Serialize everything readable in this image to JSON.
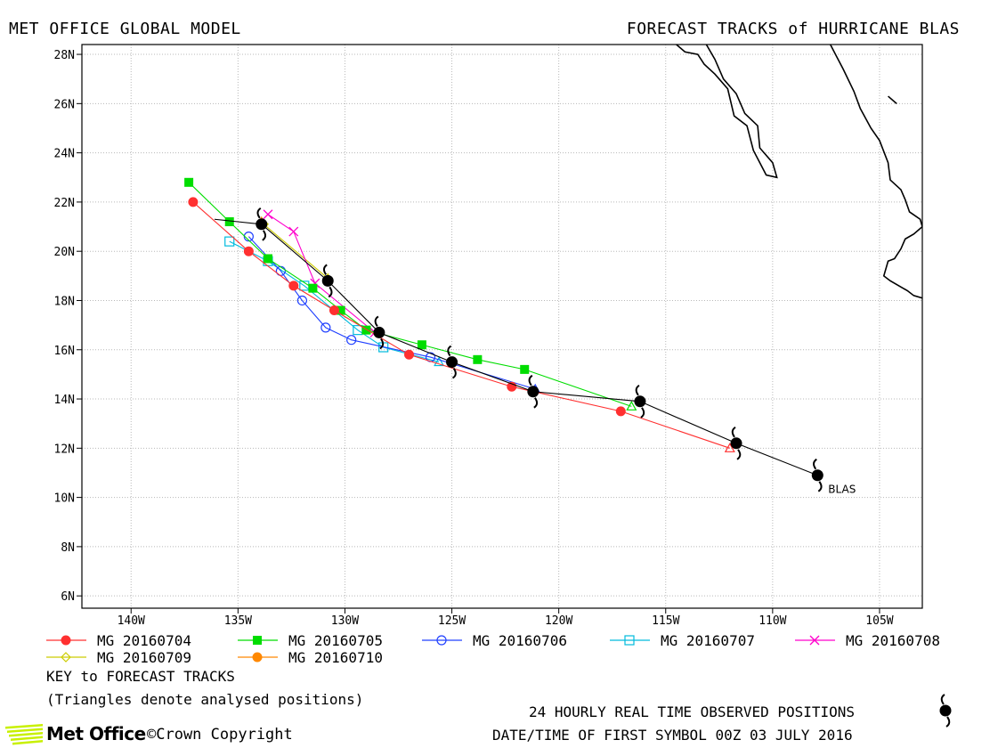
{
  "header": {
    "left": "MET OFFICE GLOBAL MODEL",
    "right": "FORECAST TRACKS of HURRICANE BLAS"
  },
  "chart_data": {
    "type": "line",
    "xlim": [
      -142.3,
      -103
    ],
    "ylim": [
      5.5,
      28.4
    ],
    "x_ticks": [
      -140,
      -135,
      -130,
      -125,
      -120,
      -115,
      -110,
      -105
    ],
    "x_tick_labels": [
      "140W",
      "135W",
      "130W",
      "125W",
      "120W",
      "115W",
      "110W",
      "105W"
    ],
    "y_ticks": [
      6,
      8,
      10,
      12,
      14,
      16,
      18,
      20,
      22,
      24,
      26,
      28
    ],
    "y_tick_labels": [
      "6N",
      "8N",
      "10N",
      "12N",
      "14N",
      "16N",
      "18N",
      "20N",
      "22N",
      "24N",
      "26N",
      "28N"
    ],
    "grid": true,
    "storm_label": "BLAS",
    "observed": {
      "label": "24 HOURLY REAL TIME OBSERVED POSITIONS",
      "points": [
        [
          -107.9,
          10.9
        ],
        [
          -111.7,
          12.2
        ],
        [
          -116.2,
          13.9
        ],
        [
          -121.2,
          14.3
        ],
        [
          -125.0,
          15.5
        ],
        [
          -128.4,
          16.7
        ],
        [
          -130.8,
          18.8
        ],
        [
          -133.9,
          21.1
        ]
      ],
      "extension": [
        [
          -133.9,
          21.1
        ],
        [
          -136.1,
          21.3
        ]
      ]
    },
    "series": [
      {
        "name": "MG 20160704",
        "color": "#ff3030",
        "marker": "circle-filled",
        "points": [
          [
            -112.0,
            12.0
          ],
          [
            -117.1,
            13.5
          ],
          [
            -122.2,
            14.5
          ],
          [
            -127.0,
            15.8
          ],
          [
            -130.5,
            17.6
          ],
          [
            -132.4,
            18.6
          ],
          [
            -134.5,
            20.0
          ],
          [
            -137.1,
            22.0
          ]
        ]
      },
      {
        "name": "MG 20160705",
        "color": "#00dd00",
        "marker": "square-filled",
        "points": [
          [
            -116.6,
            13.7
          ],
          [
            -121.6,
            15.2
          ],
          [
            -123.8,
            15.6
          ],
          [
            -126.4,
            16.2
          ],
          [
            -129.0,
            16.8
          ],
          [
            -130.2,
            17.6
          ],
          [
            -131.5,
            18.5
          ],
          [
            -133.6,
            19.7
          ],
          [
            -135.4,
            21.2
          ],
          [
            -137.3,
            22.8
          ]
        ]
      },
      {
        "name": "MG 20160706",
        "color": "#2040ff",
        "marker": "circle-open",
        "points": [
          [
            -121.1,
            14.4
          ],
          [
            -126.0,
            15.7
          ],
          [
            -129.7,
            16.4
          ],
          [
            -130.9,
            16.9
          ],
          [
            -132.0,
            18.0
          ],
          [
            -133.0,
            19.2
          ],
          [
            -134.5,
            20.6
          ]
        ]
      },
      {
        "name": "MG 20160707",
        "color": "#00bbdd",
        "marker": "square-open",
        "points": [
          [
            -125.6,
            15.5
          ],
          [
            -128.2,
            16.1
          ],
          [
            -129.4,
            16.8
          ],
          [
            -131.9,
            18.6
          ],
          [
            -133.6,
            19.6
          ],
          [
            -135.4,
            20.4
          ]
        ]
      },
      {
        "name": "MG 20160708",
        "color": "#ff00cc",
        "marker": "cross",
        "points": [
          [
            -128.6,
            16.7
          ],
          [
            -131.4,
            18.7
          ],
          [
            -132.4,
            20.8
          ],
          [
            -133.6,
            21.5
          ]
        ]
      },
      {
        "name": "MG 20160709",
        "color": "#cccc00",
        "marker": "diamond-open",
        "points": [
          [
            -130.8,
            18.9
          ],
          [
            -133.8,
            21.1
          ]
        ]
      },
      {
        "name": "MG 20160710",
        "color": "#ff8800",
        "marker": "circle-filled",
        "points": [
          [
            -133.9,
            21.2
          ]
        ]
      }
    ]
  },
  "coastline": [
    [
      [
        -107.3,
        28.4
      ],
      [
        -107.0,
        27.9
      ],
      [
        -106.7,
        27.4
      ],
      [
        -106.2,
        26.5
      ],
      [
        -105.9,
        25.8
      ],
      [
        -105.4,
        25.0
      ],
      [
        -105.0,
        24.5
      ],
      [
        -104.6,
        23.6
      ],
      [
        -104.5,
        22.9
      ],
      [
        -104.0,
        22.5
      ],
      [
        -103.8,
        22.1
      ],
      [
        -103.6,
        21.6
      ],
      [
        -103.1,
        21.3
      ],
      [
        -103.0,
        21.0
      ],
      [
        -103.4,
        20.7
      ],
      [
        -103.8,
        20.5
      ],
      [
        -104.0,
        20.1
      ],
      [
        -104.3,
        19.7
      ],
      [
        -104.6,
        19.6
      ],
      [
        -104.8,
        19.0
      ],
      [
        -104.5,
        18.8
      ],
      [
        -103.9,
        18.5
      ],
      [
        -103.7,
        18.4
      ],
      [
        -103.4,
        18.2
      ],
      [
        -103.0,
        18.1
      ]
    ],
    [
      [
        -113.1,
        28.4
      ],
      [
        -112.7,
        27.8
      ],
      [
        -112.3,
        27.0
      ],
      [
        -111.7,
        26.4
      ],
      [
        -111.3,
        25.6
      ],
      [
        -110.7,
        25.1
      ],
      [
        -110.6,
        24.2
      ],
      [
        -110.0,
        23.6
      ],
      [
        -109.8,
        23.0
      ],
      [
        -110.3,
        23.1
      ],
      [
        -110.9,
        24.1
      ],
      [
        -111.2,
        25.1
      ],
      [
        -111.8,
        25.5
      ],
      [
        -112.1,
        26.6
      ],
      [
        -112.7,
        27.2
      ],
      [
        -113.2,
        27.6
      ],
      [
        -113.5,
        28.0
      ],
      [
        -114.1,
        28.1
      ],
      [
        -114.5,
        28.4
      ]
    ],
    [
      [
        -104.2,
        26.0
      ],
      [
        -104.6,
        26.3
      ]
    ]
  ],
  "legend": {
    "row1": [
      "MG 20160704",
      "MG 20160705",
      "MG 20160706",
      "MG 20160707",
      "MG 20160708"
    ],
    "row2": [
      "MG 20160709",
      "MG 20160710"
    ]
  },
  "footer": {
    "key_title": "KEY to FORECAST TRACKS",
    "key_note": "(Triangles denote analysed positions)",
    "observed_label": "24 HOURLY REAL TIME OBSERVED POSITIONS",
    "date_text": "DATE/TIME OF FIRST SYMBOL 00Z 03 JULY 2016",
    "logo": "Met Office",
    "crown": "©Crown Copyright",
    "logo_color": "#c8f000"
  }
}
